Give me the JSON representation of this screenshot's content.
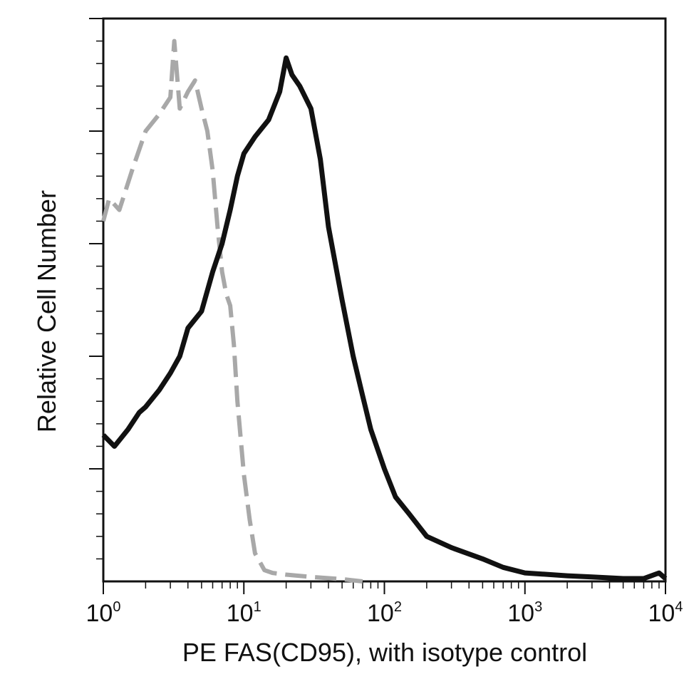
{
  "chart_data": {
    "type": "line",
    "title": "",
    "xlabel": "PE FAS(CD95), with isotype control",
    "ylabel": "Relative Cell Number",
    "x_scale": "log10",
    "xlim": [
      1,
      10000
    ],
    "ylim": [
      0,
      1
    ],
    "x_tick_labels": [
      {
        "base": "10",
        "exp": "0"
      },
      {
        "base": "10",
        "exp": "1"
      },
      {
        "base": "10",
        "exp": "2"
      },
      {
        "base": "10",
        "exp": "3"
      },
      {
        "base": "10",
        "exp": "4"
      }
    ],
    "grid": false,
    "legend": "none",
    "series": [
      {
        "style": "dashed",
        "color": "#a8a8a8",
        "x": [
          1.0,
          1.1,
          1.3,
          1.6,
          2.0,
          2.5,
          3.0,
          3.2,
          3.5,
          4.0,
          4.5,
          5.0,
          5.5,
          6.0,
          6.5,
          7.0,
          7.5,
          8.0,
          8.5,
          9.0,
          10.0,
          11.0,
          12.0,
          14.0,
          16.0,
          20.0,
          30.0,
          50.0,
          70.0
        ],
        "y": [
          0.64,
          0.68,
          0.66,
          0.73,
          0.8,
          0.83,
          0.86,
          0.96,
          0.84,
          0.87,
          0.89,
          0.84,
          0.8,
          0.73,
          0.63,
          0.55,
          0.51,
          0.49,
          0.42,
          0.32,
          0.19,
          0.11,
          0.05,
          0.02,
          0.015,
          0.012,
          0.008,
          0.004,
          0.0
        ]
      },
      {
        "style": "solid",
        "color": "#111111",
        "x": [
          1.0,
          1.2,
          1.5,
          1.8,
          2.0,
          2.5,
          3.0,
          3.5,
          4.0,
          5.0,
          6.0,
          7.0,
          8.0,
          9.0,
          10.0,
          12.0,
          15.0,
          18.0,
          20.0,
          22.0,
          25.0,
          30.0,
          35.0,
          40.0,
          50.0,
          60.0,
          70.0,
          80.0,
          100.0,
          120.0,
          150.0,
          200.0,
          300.0,
          500.0,
          700.0,
          1000.0,
          2000.0,
          3000.0,
          5000.0,
          7000.0,
          9000.0,
          10000.0
        ],
        "y": [
          0.26,
          0.24,
          0.27,
          0.3,
          0.31,
          0.34,
          0.37,
          0.4,
          0.45,
          0.48,
          0.55,
          0.6,
          0.66,
          0.72,
          0.76,
          0.79,
          0.82,
          0.87,
          0.93,
          0.9,
          0.88,
          0.84,
          0.75,
          0.63,
          0.5,
          0.4,
          0.33,
          0.27,
          0.2,
          0.15,
          0.12,
          0.08,
          0.06,
          0.04,
          0.025,
          0.015,
          0.01,
          0.008,
          0.005,
          0.005,
          0.015,
          0.005
        ]
      }
    ]
  }
}
